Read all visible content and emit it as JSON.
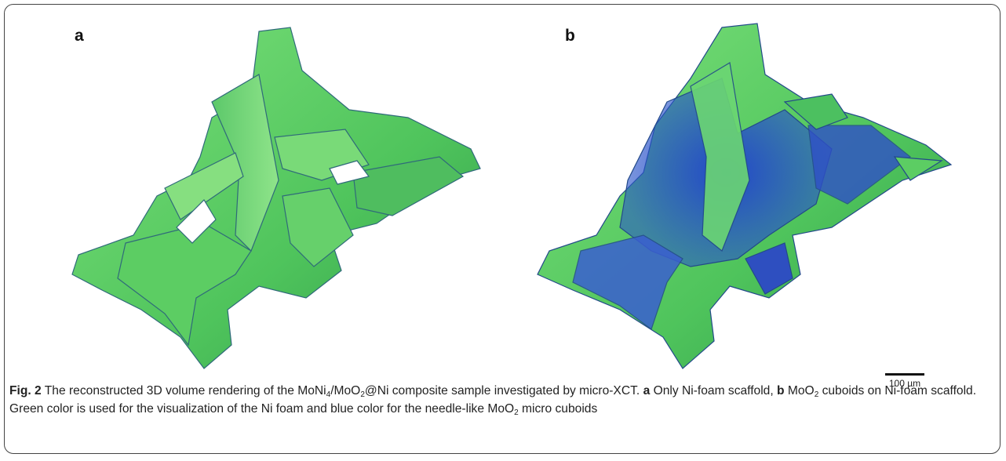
{
  "panels": [
    {
      "label": "a"
    },
    {
      "label": "b"
    }
  ],
  "scale_bar": {
    "label": "100 µm"
  },
  "caption": {
    "figure_label": "Fig. 2",
    "parts": [
      " The reconstructed 3D volume rendering of the MoNi",
      "4",
      "/MoO",
      "2",
      "@Ni composite sample investigated by micro-XCT. ",
      "a",
      " Only Ni-foam scaffold, ",
      "b",
      " MoO",
      "2",
      " cuboids on Ni-foam scaffold. Green color is used for the visualization of the Ni foam and blue color for the needle-like MoO",
      "2",
      " micro cuboids"
    ]
  }
}
